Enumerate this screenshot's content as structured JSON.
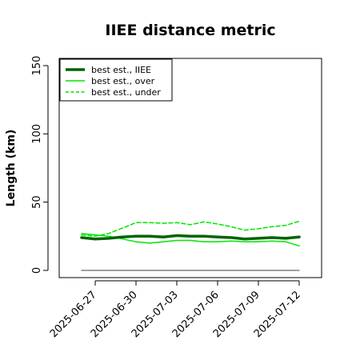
{
  "chart_data": {
    "type": "line",
    "title": "IIEE distance metric",
    "xlabel": "",
    "ylabel": "Length (km)",
    "x_dates": [
      "2025-06-26",
      "2025-06-27",
      "2025-06-28",
      "2025-06-29",
      "2025-06-30",
      "2025-07-01",
      "2025-07-02",
      "2025-07-03",
      "2025-07-04",
      "2025-07-05",
      "2025-07-06",
      "2025-07-07",
      "2025-07-08",
      "2025-07-09",
      "2025-07-10",
      "2025-07-11",
      "2025-07-12"
    ],
    "x_tick_labels": [
      "2025-06-27",
      "2025-06-30",
      "2025-07-03",
      "2025-07-06",
      "2025-07-09",
      "2025-07-12"
    ],
    "ylim": [
      -5,
      158
    ],
    "y_ticks": [
      0,
      50,
      100,
      150
    ],
    "grid": false,
    "legend_position": "top-left",
    "series": [
      {
        "name": "best est., IIEE",
        "color": "#006400",
        "style": "solid-thick",
        "values": [
          24,
          23,
          23.5,
          24.5,
          25,
          25,
          24.5,
          25.5,
          25,
          25,
          24.5,
          24,
          23,
          23.5,
          24,
          23.5,
          24.5
        ]
      },
      {
        "name": "best est., over",
        "color": "#00e600",
        "style": "solid",
        "values": [
          27,
          26,
          25,
          23,
          21,
          20,
          21,
          22,
          22,
          21,
          21,
          21.5,
          21,
          21,
          21.5,
          21,
          18
        ]
      },
      {
        "name": "best est., under",
        "color": "#00e600",
        "style": "dashed",
        "values": [
          26,
          25,
          27,
          31,
          35,
          35,
          34.5,
          35,
          33.5,
          35.5,
          34,
          32,
          29.5,
          30.5,
          32,
          33,
          36
        ]
      },
      {
        "name": "",
        "color": "#808080",
        "style": "solid",
        "values": [
          0,
          0,
          0,
          0,
          0,
          0,
          0,
          0,
          0,
          0,
          0,
          0,
          0,
          0,
          0,
          0,
          0
        ]
      }
    ]
  }
}
